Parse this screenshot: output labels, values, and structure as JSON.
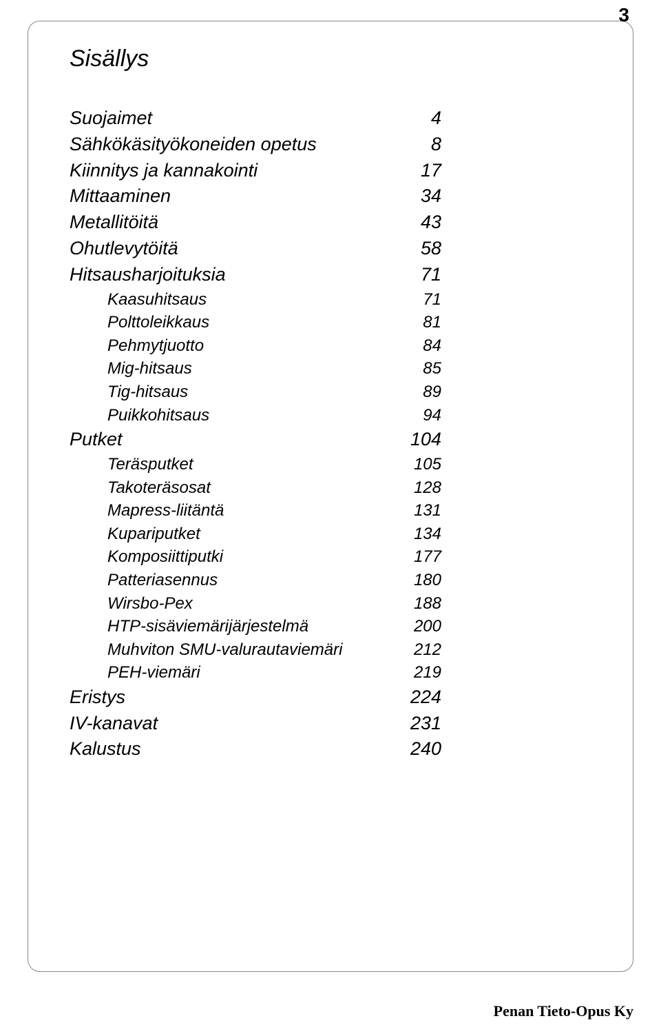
{
  "page_number": "3",
  "title": "Sisällys",
  "footer": "Penan Tieto-Opus Ky",
  "toc": [
    {
      "label": "Suojaimet",
      "page": "4",
      "level": "section"
    },
    {
      "label": "Sähkökäsityökoneiden opetus",
      "page": "8",
      "level": "section"
    },
    {
      "label": "Kiinnitys ja kannakointi",
      "page": "17",
      "level": "section"
    },
    {
      "label": "Mittaaminen",
      "page": "34",
      "level": "section"
    },
    {
      "label": "Metallitöitä",
      "page": "43",
      "level": "section"
    },
    {
      "label": "Ohutlevytöitä",
      "page": "58",
      "level": "section"
    },
    {
      "label": "Hitsausharjoituksia",
      "page": "71",
      "level": "section"
    },
    {
      "label": "Kaasuhitsaus",
      "page": "71",
      "level": "sub"
    },
    {
      "label": "Polttoleikkaus",
      "page": "81",
      "level": "sub"
    },
    {
      "label": "Pehmytjuotto",
      "page": "84",
      "level": "sub"
    },
    {
      "label": "Mig-hitsaus",
      "page": "85",
      "level": "sub"
    },
    {
      "label": "Tig-hitsaus",
      "page": "89",
      "level": "sub"
    },
    {
      "label": "Puikkohitsaus",
      "page": "94",
      "level": "sub"
    },
    {
      "label": "Putket",
      "page": "104",
      "level": "section"
    },
    {
      "label": "Teräsputket",
      "page": "105",
      "level": "sub"
    },
    {
      "label": "Takoteräsosat",
      "page": "128",
      "level": "sub"
    },
    {
      "label": "Mapress-liitäntä",
      "page": "131",
      "level": "sub"
    },
    {
      "label": "Kupariputket",
      "page": "134",
      "level": "sub"
    },
    {
      "label": "Komposiittiputki",
      "page": "177",
      "level": "sub"
    },
    {
      "label": "Patteriasennus",
      "page": "180",
      "level": "sub"
    },
    {
      "label": "Wirsbo-Pex",
      "page": "188",
      "level": "sub"
    },
    {
      "label": "HTP-sisäviemärijärjestelmä",
      "page": "200",
      "level": "sub"
    },
    {
      "label": "Muhviton SMU-valurautaviemäri",
      "page": "212",
      "level": "sub"
    },
    {
      "label": "PEH-viemäri",
      "page": "219",
      "level": "sub"
    },
    {
      "label": "Eristys",
      "page": "224",
      "level": "section"
    },
    {
      "label": "IV-kanavat",
      "page": "231",
      "level": "section"
    },
    {
      "label": "Kalustus",
      "page": "240",
      "level": "section"
    }
  ]
}
